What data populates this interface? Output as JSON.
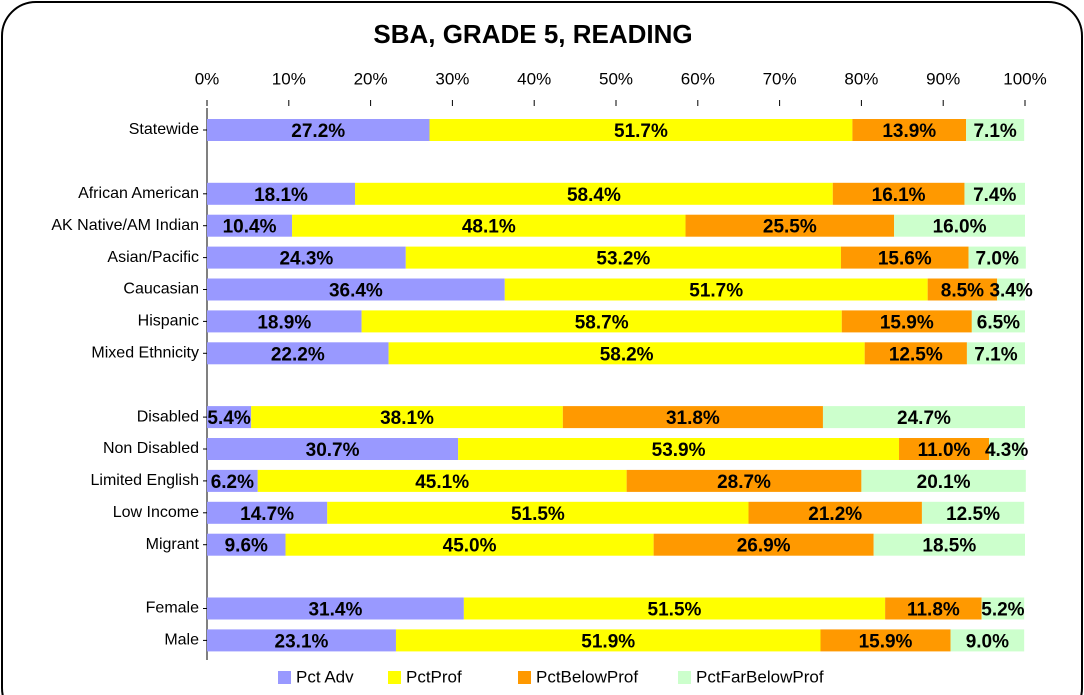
{
  "chart_data": {
    "type": "stacked-barh",
    "title": "SBA, GRADE 5, READING",
    "categories": [
      "Statewide",
      null,
      "African American",
      "AK Native/AM Indian",
      "Asian/Pacific",
      "Caucasian",
      "Hispanic",
      "Mixed Ethnicity",
      null,
      "Disabled",
      "Non Disabled",
      "Limited English",
      "Low Income",
      "Migrant",
      null,
      "Female",
      "Male"
    ],
    "series": [
      {
        "name": "Pct Adv",
        "color": "#9999ff",
        "values": [
          27.2,
          null,
          18.1,
          10.4,
          24.3,
          36.4,
          18.9,
          22.2,
          null,
          5.4,
          30.7,
          6.2,
          14.7,
          9.6,
          null,
          31.4,
          23.1
        ],
        "value_labels": [
          "27.2%",
          null,
          "18.1%",
          "10.4%",
          "24.3%",
          "36.4%",
          "18.9%",
          "22.2%",
          null,
          "5.4%",
          "30.7%",
          "6.2%",
          "14.7%",
          "9.6%",
          null,
          "31.4%",
          "23.1%"
        ]
      },
      {
        "name": "PctProf",
        "color": "#ffff00",
        "values": [
          51.7,
          null,
          58.4,
          48.1,
          53.2,
          51.7,
          58.7,
          58.2,
          null,
          38.1,
          53.9,
          45.1,
          51.5,
          45.0,
          null,
          51.5,
          51.9
        ],
        "value_labels": [
          "51.7%",
          null,
          "58.4%",
          "48.1%",
          "53.2%",
          "51.7%",
          "58.7%",
          "58.2%",
          null,
          "38.1%",
          "53.9%",
          "45.1%",
          "51.5%",
          "45.0%",
          null,
          "51.5%",
          "51.9%"
        ]
      },
      {
        "name": "PctBelowProf",
        "color": "#ff9900",
        "values": [
          13.9,
          null,
          16.1,
          25.5,
          15.6,
          8.5,
          15.9,
          12.5,
          null,
          31.8,
          11.0,
          28.7,
          21.2,
          26.9,
          null,
          11.8,
          15.9
        ],
        "value_labels": [
          "13.9%",
          null,
          "16.1%",
          "25.5%",
          "15.6%",
          "8.5%",
          "15.9%",
          "12.5%",
          null,
          "31.8%",
          "11.0%",
          "28.7%",
          "21.2%",
          "26.9%",
          null,
          "11.8%",
          "15.9%"
        ]
      },
      {
        "name": "PctFarBelowProf",
        "color": "#ccffcc",
        "values": [
          7.1,
          null,
          7.4,
          16.0,
          7.0,
          3.4,
          6.5,
          7.1,
          null,
          24.7,
          4.3,
          20.1,
          12.5,
          18.5,
          null,
          5.2,
          9.0
        ],
        "value_labels": [
          "7.1%",
          null,
          "7.4%",
          "16.0%",
          "7.0%",
          "3.4%",
          "6.5%",
          "7.1%",
          null,
          "24.7%",
          "4.3%",
          "20.1%",
          "12.5%",
          "18.5%",
          null,
          "5.2%",
          "9.0%"
        ]
      }
    ],
    "xlim": [
      0,
      100
    ],
    "xticks": [
      {
        "value": 0,
        "label": "0%"
      },
      {
        "value": 10,
        "label": "10%"
      },
      {
        "value": 20,
        "label": "20%"
      },
      {
        "value": 30,
        "label": "30%"
      },
      {
        "value": 40,
        "label": "40%"
      },
      {
        "value": 50,
        "label": "50%"
      },
      {
        "value": 60,
        "label": "60%"
      },
      {
        "value": 70,
        "label": "70%"
      },
      {
        "value": 80,
        "label": "80%"
      },
      {
        "value": 90,
        "label": "90%"
      },
      {
        "value": 100,
        "label": "100%"
      }
    ],
    "legend": "bottom"
  }
}
